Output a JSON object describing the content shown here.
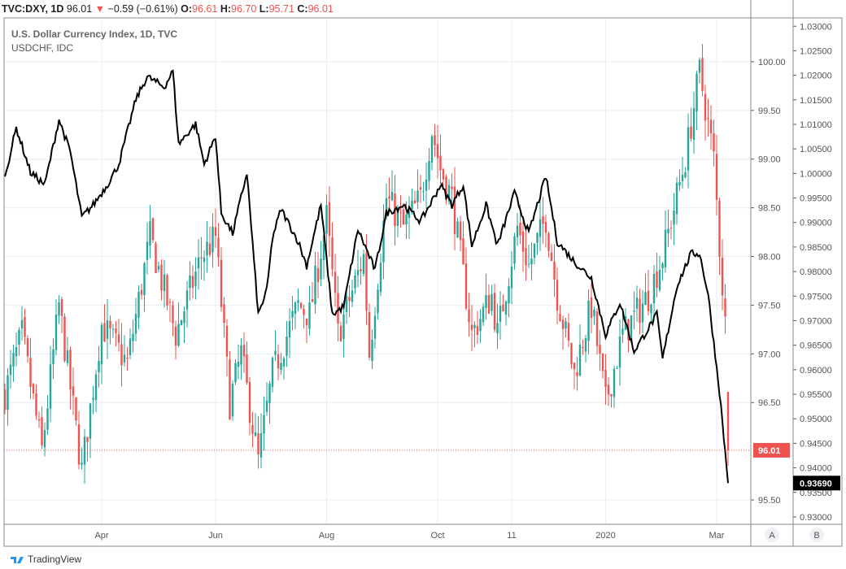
{
  "header": {
    "symbol": "TVC:DXY, 1D",
    "price": "96.01",
    "change": "−0.59 (−0.61%)",
    "o_label": "O:",
    "o": "96.61",
    "h_label": "H:",
    "h": "96.70",
    "l_label": "L:",
    "l": "95.71",
    "c_label": "C:",
    "c": "96.01"
  },
  "legend": {
    "main": "U.S. Dollar Currency Index, 1D, TVC",
    "compare": "USDCHF, IDC"
  },
  "scale_buttons": {
    "a": "A",
    "b": "B"
  },
  "footer": {
    "brand": "TradingView"
  },
  "colors": {
    "up": "#26a69a",
    "down": "#ef5350",
    "line": "#000000",
    "grid": "#e8eef3"
  },
  "chart_data": {
    "type": "candlestick+line",
    "x_ticks": [
      {
        "label": "Apr",
        "day": 34
      },
      {
        "label": "Jun",
        "day": 74
      },
      {
        "label": "Aug",
        "day": 113
      },
      {
        "label": "Oct",
        "day": 152
      },
      {
        "label": "11",
        "day": 178
      },
      {
        "label": "2020",
        "day": 211
      },
      {
        "label": "Mar",
        "day": 250
      }
    ],
    "axis_a": {
      "ticks": [
        "100.00",
        "99.50",
        "99.00",
        "98.50",
        "98.00",
        "97.50",
        "97.00",
        "96.50",
        "95.50"
      ],
      "range": [
        95.25,
        100.45
      ],
      "last_label": "96.01"
    },
    "axis_b": {
      "ticks": [
        "1.03000",
        "1.02500",
        "1.02000",
        "1.01500",
        "1.01000",
        "1.00500",
        "1.00000",
        "0.99500",
        "0.99000",
        "0.98500",
        "0.98000",
        "0.97500",
        "0.97000",
        "0.96500",
        "0.96000",
        "0.95500",
        "0.95000",
        "0.94500",
        "0.94000",
        "0.93500",
        "0.93000"
      ],
      "range": [
        0.9285,
        1.0317
      ],
      "last_label": "0.93690"
    },
    "series": [
      {
        "name": "DXY",
        "kind": "candles",
        "anchors_day": [
          0,
          6,
          13,
          19,
          27,
          34,
          43,
          51,
          60,
          69,
          74,
          79,
          83,
          89,
          94,
          103,
          107,
          113,
          117,
          126,
          128,
          134,
          140,
          146,
          150,
          153,
          157,
          164,
          171,
          173,
          180,
          184,
          190,
          194,
          200,
          206,
          211,
          217,
          226,
          231,
          239,
          244,
          249,
          251,
          253,
          254
        ],
        "anchors_close": [
          96.6,
          97.2,
          96.0,
          97.5,
          95.8,
          97.3,
          96.9,
          98.2,
          97.2,
          98.0,
          98.2,
          96.5,
          97.0,
          95.9,
          96.8,
          97.5,
          97.4,
          98.4,
          97.2,
          98.0,
          97.0,
          98.6,
          98.3,
          98.6,
          99.3,
          98.9,
          98.6,
          97.2,
          97.6,
          97.2,
          98.3,
          97.9,
          98.4,
          97.6,
          96.8,
          97.5,
          96.5,
          97.2,
          97.6,
          98.0,
          99.0,
          99.9,
          99.0,
          98.1,
          97.3,
          96.01
        ]
      },
      {
        "name": "USDCHF",
        "kind": "line",
        "anchors_day": [
          0,
          4,
          9,
          14,
          19,
          23,
          27,
          31,
          36,
          40,
          46,
          50,
          56,
          59,
          61,
          67,
          70,
          74,
          76,
          80,
          85,
          89,
          92,
          94,
          97,
          103,
          106,
          111,
          115,
          119,
          124,
          130,
          134,
          140,
          146,
          150,
          153,
          157,
          161,
          164,
          169,
          173,
          179,
          184,
          190,
          194,
          200,
          206,
          211,
          216,
          221,
          229,
          231,
          236,
          241,
          244,
          247,
          251,
          254
        ],
        "anchors_value": [
          0.99937,
          1.00931,
          1.0002,
          0.99771,
          1.011,
          1.00434,
          0.99109,
          0.99358,
          0.99771,
          1.00185,
          1.0151,
          1.01974,
          1.01758,
          1.0209,
          1.006,
          1.0101,
          1.00185,
          1.00765,
          0.99192,
          0.98778,
          1.0002,
          0.97122,
          0.97619,
          0.98695,
          0.99275,
          0.98613,
          0.98116,
          0.99358,
          0.97122,
          0.97288,
          0.98861,
          0.98033,
          0.99192,
          0.99358,
          0.99026,
          0.9944,
          0.99771,
          0.99358,
          0.99771,
          0.9853,
          0.99358,
          0.9853,
          0.99606,
          0.98778,
          0.99937,
          0.98613,
          0.98199,
          0.97868,
          0.96709,
          0.97371,
          0.96377,
          0.97122,
          0.96212,
          0.97702,
          0.98364,
          0.98364,
          0.97536,
          0.9555,
          0.9369
        ]
      }
    ]
  }
}
